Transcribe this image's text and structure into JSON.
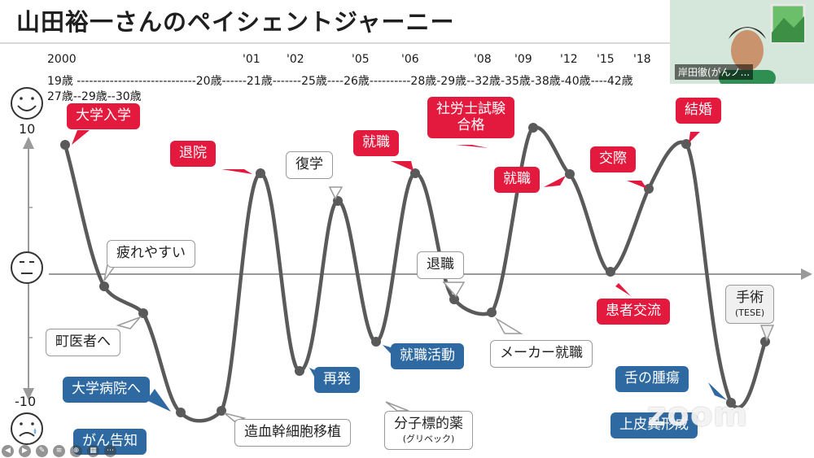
{
  "title": "山田裕一さんのペイシェントジャーニー",
  "timeline": {
    "years": [
      "2000",
      "'01",
      "'02",
      "'05",
      "'06",
      "'08",
      "'09",
      "'12",
      "'15",
      "'18"
    ],
    "line1": "19歳 -----------------------------20歳------21歳-------25歳----26歳----------28歳-29歳--32歳-35歳-38歳-40歳----42歳",
    "line2": "27歳--29歳--30歳"
  },
  "scale": {
    "top": "10",
    "bottom": "-10"
  },
  "labels": {
    "university": "大学入学",
    "tired": "疲れやすい",
    "to_clinic": "町医者へ",
    "univ_hospital": "大学病院へ",
    "cancer_notice": "がん告知",
    "transplant": "造血幹細胞移植",
    "discharge": "退院",
    "relapse": "再発",
    "return_school": "復学",
    "targeted_drug": "分子標的薬",
    "targeted_drug_sub": "(グリベック)",
    "job_hunting": "就職活動",
    "employment1": "就職",
    "exam_line1": "社労士試験",
    "exam_line2": "合格",
    "resign": "退職",
    "maker_job": "メーカー就職",
    "employment2": "就職",
    "dating": "交際",
    "patient_exchange": "患者交流",
    "marriage": "結婚",
    "tongue_tumor": "舌の腫瘍",
    "epithelial": "上皮異形成",
    "surgery": "手術",
    "surgery_sub": "(TESE)"
  },
  "webcam": {
    "name": "岸田徹(がんノ..."
  },
  "watermark": "zoom",
  "colors": {
    "red": "#e3193e",
    "blue": "#2e6aa1",
    "curve": "#5a5a5a"
  }
}
